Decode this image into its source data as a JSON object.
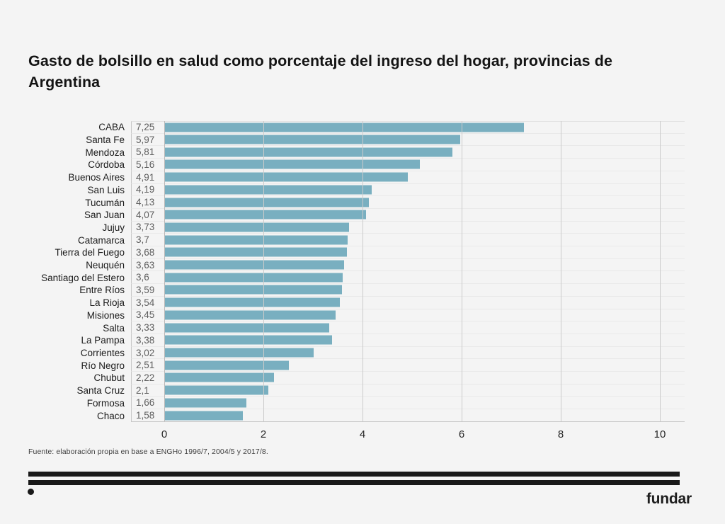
{
  "header": {
    "title_line1": "Gasto de bolsillo en salud como porcentaje del ingreso del hogar, provincias de",
    "title_line2": "Argentina"
  },
  "footer": {
    "source": "Fuente: elaboración propia en base a ENGHo 1996/7, 2004/5 y 2017/8.",
    "brand": "fundar"
  },
  "chart_data": {
    "type": "bar",
    "orientation": "horizontal",
    "title": "Gasto de bolsillo en salud como porcentaje del ingreso del hogar, provincias de Argentina",
    "xlabel": "",
    "ylabel": "",
    "categories": [
      "CABA",
      "Santa Fe",
      "Mendoza",
      "Córdoba",
      "Buenos Aires",
      "San Luis",
      "Tucumán",
      "San Juan",
      "Jujuy",
      "Catamarca",
      "Tierra del Fuego",
      "Neuquén",
      "Santiago del Estero",
      "Entre Ríos",
      "La Rioja",
      "Misiones",
      "Salta",
      "La Pampa",
      "Corrientes",
      "Río Negro",
      "Chubut",
      "Santa Cruz",
      "Formosa",
      "Chaco"
    ],
    "values": [
      7.25,
      5.97,
      5.81,
      5.16,
      4.91,
      4.19,
      4.13,
      4.07,
      3.73,
      3.7,
      3.68,
      3.63,
      3.6,
      3.59,
      3.54,
      3.45,
      3.33,
      3.38,
      3.02,
      2.51,
      2.22,
      2.1,
      1.66,
      1.58
    ],
    "value_labels": [
      "7,25",
      "5,97",
      "5,81",
      "5,16",
      "4,91",
      "4,19",
      "4,13",
      "4,07",
      "3,73",
      "3,7",
      "3,68",
      "3,63",
      "3,6",
      "3,59",
      "3,54",
      "3,45",
      "3,33",
      "3,38",
      "3,02",
      "2,51",
      "2,22",
      "2,1",
      "1,66",
      "1,58"
    ],
    "xticks": [
      0,
      2,
      4,
      6,
      8,
      10
    ],
    "xlim": [
      0,
      10.5
    ],
    "grid": "vertical",
    "legend": "none",
    "bar_color": "#79afc0",
    "source_note": "Fuente: elaboración propia en base a ENGHo 1996/7, 2004/5 y 2017/8."
  }
}
